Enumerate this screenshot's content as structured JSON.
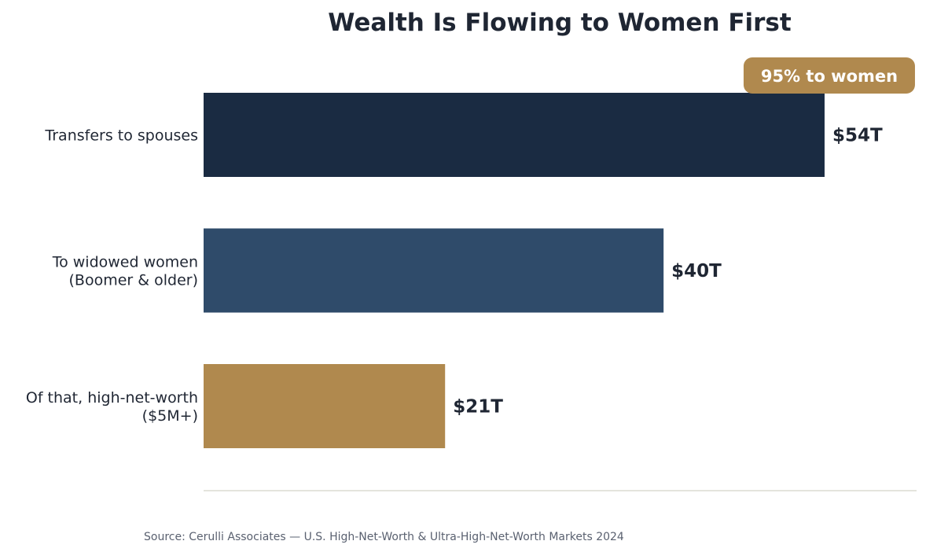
{
  "chart_data": {
    "type": "bar",
    "orientation": "horizontal",
    "title": "Wealth Is Flowing to Women First",
    "categories": [
      [
        "Transfers to spouses"
      ],
      [
        "To widowed women",
        "(Boomer & older)"
      ],
      [
        "Of that, high-net-worth",
        "($5M+)"
      ]
    ],
    "values": [
      54,
      40,
      21
    ],
    "value_labels": [
      "$54T",
      "$40T",
      "$21T"
    ],
    "unit": "trillion USD",
    "bar_colors": [
      "#1a2b42",
      "#2f4b6a",
      "#b0894e"
    ],
    "xlim": [
      0,
      62
    ],
    "grid": false,
    "xlabel": "",
    "ylabel": "",
    "annotation": {
      "text": "95% to women",
      "color": "#b0894e",
      "text_color": "#ffffff",
      "attached_to": "Transfers to spouses"
    },
    "source": "Source: Cerulli Associates — U.S. High-Net-Worth & Ultra-High-Net-Worth Markets 2024"
  },
  "colors": {
    "text": "#1f2633",
    "muted_text": "#5a6170",
    "baseline": "#dcdbd2",
    "accent_gold": "#b0894e",
    "navy": "#1a2b42",
    "slate_blue": "#2f4b6a"
  }
}
